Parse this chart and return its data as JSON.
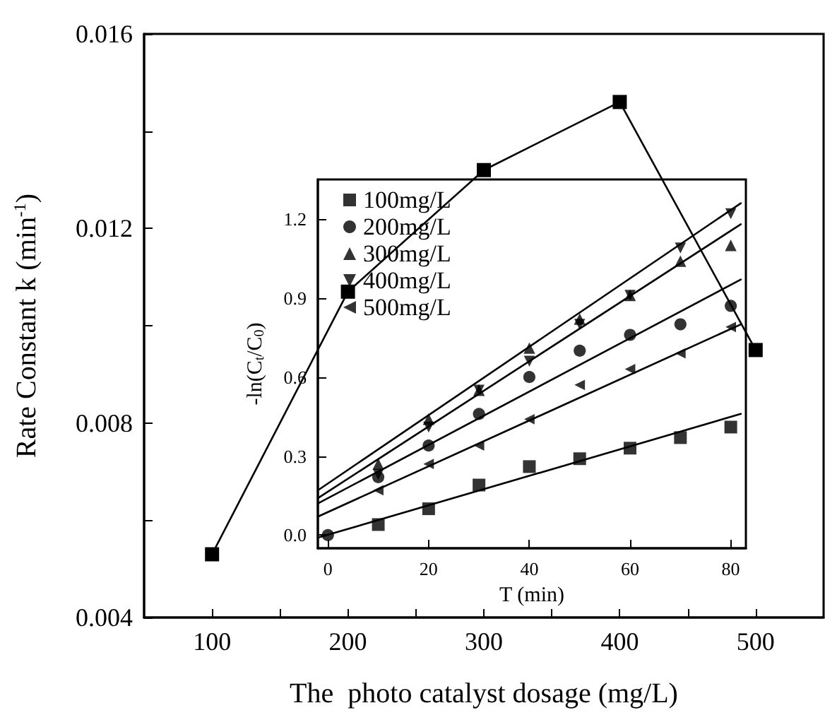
{
  "chart_data": [
    {
      "type": "line",
      "xlabel": "The  photo catalyst dosage (mg/L)",
      "ylabel": "Rate Constant k (min$^{-1}$)",
      "x": [
        100,
        200,
        300,
        400,
        500
      ],
      "series": [
        {
          "color": "#000000",
          "values": [
            0.0053,
            0.0107,
            0.0132,
            0.0146,
            0.0095
          ]
        }
      ],
      "xlim": [
        50,
        550
      ],
      "xticks": [
        100,
        {
          "value": 150,
          "label": null
        },
        200,
        {
          "value": 250,
          "label": null
        },
        300,
        {
          "value": 350,
          "label": null
        },
        400,
        {
          "value": 450,
          "label": null
        },
        500
      ],
      "ylim": [
        0.004,
        0.016
      ],
      "yticks": [
        0.004,
        {
          "value": 0.006,
          "label": null
        },
        0.008,
        {
          "value": 0.01,
          "label": null
        },
        0.012,
        {
          "value": 0.014,
          "label": null
        },
        0.016
      ],
      "marker": "square",
      "line_style": "solid",
      "grid": false,
      "legend": false
    },
    {
      "type": "scatter",
      "xlabel": "T (min)",
      "ylabel": "-ln(C$_{t}$/C$_{0}$)",
      "x": [
        0,
        10,
        20,
        30,
        40,
        50,
        60,
        70,
        80
      ],
      "series": [
        {
          "name": "100mg/L",
          "color": "#000000",
          "marker": "square",
          "values": [
            null,
            0.04,
            0.1,
            0.19,
            0.26,
            0.29,
            0.33,
            0.37,
            0.41
          ]
        },
        {
          "name": "200mg/L",
          "color": "#000000",
          "marker": "circle",
          "values": [
            0,
            0.22,
            0.34,
            0.46,
            0.6,
            0.7,
            0.76,
            0.8,
            0.87
          ]
        },
        {
          "name": "300mg/L",
          "color": "#000000",
          "marker": "triangle",
          "x": [
            10,
            20,
            30,
            40,
            50,
            60,
            70,
            80
          ],
          "values": [
            0.27,
            0.44,
            0.55,
            0.71,
            0.82,
            0.91,
            1.04,
            1.1
          ]
        },
        {
          "name": "400mg/L",
          "color": "#000000",
          "marker": "triangle-down",
          "x": [
            10,
            20,
            30,
            40,
            50,
            60,
            70,
            80
          ],
          "values": [
            0.23,
            0.41,
            0.55,
            0.66,
            0.8,
            0.91,
            1.09,
            1.22
          ]
        },
        {
          "name": "500mg/L",
          "color": "#000000",
          "marker": "triangle-left",
          "x": [
            10,
            20,
            30,
            40,
            50,
            60,
            70,
            80
          ],
          "values": [
            0.17,
            0.27,
            0.34,
            0.44,
            0.57,
            0.63,
            0.69,
            0.79
          ]
        },
        {
          "type": "line",
          "color": "#000000",
          "marker": "none",
          "x": [
            -2,
            82
          ],
          "values": [
            -0.01,
            0.46
          ]
        },
        {
          "type": "line",
          "color": "#000000",
          "marker": "none",
          "x": [
            -2,
            82
          ],
          "values": [
            0.12,
            0.97
          ]
        },
        {
          "type": "line",
          "color": "#000000",
          "marker": "none",
          "x": [
            -2,
            82
          ],
          "values": [
            0.14,
            1.18
          ]
        },
        {
          "type": "line",
          "color": "#000000",
          "marker": "none",
          "x": [
            -2,
            82
          ],
          "values": [
            0.17,
            1.26
          ]
        },
        {
          "type": "line",
          "color": "#000000",
          "marker": "none",
          "x": [
            -2,
            82
          ],
          "values": [
            0.07,
            0.8
          ]
        }
      ],
      "xlim": [
        -2,
        83
      ],
      "xticks": [
        0,
        20,
        40,
        60,
        80
      ],
      "ylim": [
        -0.05,
        1.35
      ],
      "yticks": [
        {
          "value": 0,
          "label": "0.0"
        },
        0.3,
        0.6,
        0.9,
        1.2
      ],
      "grid": false,
      "legend": "top left"
    }
  ]
}
